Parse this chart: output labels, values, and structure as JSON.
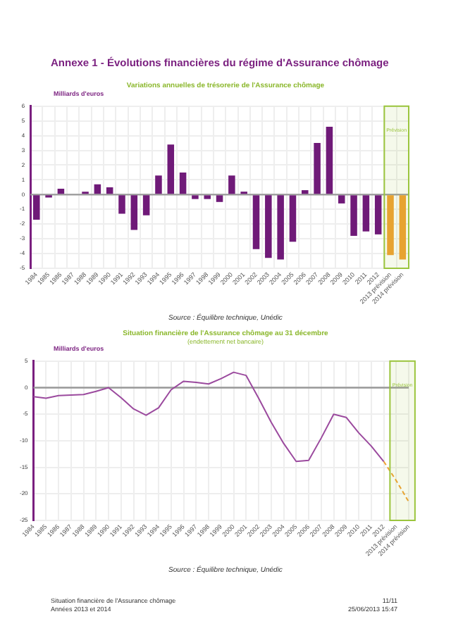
{
  "chart_data": [
    {
      "type": "bar",
      "title": "Variations annuelles de trésorerie de l'Assurance chômage",
      "ylabel": "Milliards d'euros",
      "categories": [
        "1984",
        "1985",
        "1986",
        "1987",
        "1988",
        "1989",
        "1990",
        "1991",
        "1992",
        "1993",
        "1994",
        "1995",
        "1996",
        "1997",
        "1998",
        "1999",
        "2000",
        "2001",
        "2002",
        "2003",
        "2004",
        "2005",
        "2006",
        "2007",
        "2008",
        "2009",
        "2010",
        "2011",
        "2012",
        "2013 prévision",
        "2014 prévision"
      ],
      "values": [
        -1.7,
        -0.2,
        0.4,
        0,
        0.2,
        0.7,
        0.5,
        -1.3,
        -2.4,
        -1.4,
        1.3,
        3.4,
        1.5,
        -0.3,
        -0.3,
        -0.5,
        1.3,
        0.2,
        -3.7,
        -4.3,
        -4.4,
        -3.2,
        0.3,
        3.5,
        4.6,
        -0.6,
        -2.8,
        -2.5,
        -2.7,
        -4.1,
        -4.4
      ],
      "colors": [
        "#6f1a78",
        "#6f1a78",
        "#6f1a78",
        "#6f1a78",
        "#6f1a78",
        "#6f1a78",
        "#6f1a78",
        "#6f1a78",
        "#6f1a78",
        "#6f1a78",
        "#6f1a78",
        "#6f1a78",
        "#6f1a78",
        "#6f1a78",
        "#6f1a78",
        "#6f1a78",
        "#6f1a78",
        "#6f1a78",
        "#6f1a78",
        "#6f1a78",
        "#6f1a78",
        "#6f1a78",
        "#6f1a78",
        "#6f1a78",
        "#6f1a78",
        "#6f1a78",
        "#6f1a78",
        "#6f1a78",
        "#6f1a78",
        "#f0a030",
        "#f0a030"
      ],
      "ylim": [
        -5,
        6
      ],
      "yticks": [
        -5,
        -4,
        -3,
        -2,
        -1,
        0,
        1,
        2,
        3,
        4,
        5,
        6
      ],
      "grid": true,
      "legend": false,
      "ref_lines": [
        {
          "axis": "y",
          "value": 0,
          "color": "#999999"
        }
      ],
      "bands": [
        {
          "axis": "x",
          "from": "2013 prévision",
          "to": "2014 prévision",
          "label": "Prévision",
          "color": "#9bc53d"
        }
      ],
      "annotations": [
        "Annexe 1 - Évolutions financières du régime d'Assurance chômage",
        "Source : Équilibre technique, Unédic"
      ]
    },
    {
      "type": "line",
      "title": "Situation financière de l'Assurance chômage au 31 décembre",
      "subtitle": "(endettement net bancaire)",
      "ylabel": "Milliards d'euros",
      "categories": [
        "1984",
        "1985",
        "1986",
        "1987",
        "1988",
        "1989",
        "1990",
        "1991",
        "1992",
        "1993",
        "1994",
        "1995",
        "1996",
        "1997",
        "1998",
        "1999",
        "2000",
        "2001",
        "2002",
        "2003",
        "2004",
        "2005",
        "2006",
        "2007",
        "2008",
        "2009",
        "2010",
        "2011",
        "2012",
        "2013 prévision",
        "2014 prévision"
      ],
      "series": [
        {
          "color": "#9b4a9e",
          "line_style": "solid",
          "values": [
            -1.7,
            -2.0,
            -1.5,
            -1.4,
            -1.3,
            -0.7,
            0,
            -1.9,
            -4.0,
            -5.2,
            -3.8,
            -0.4,
            1.2,
            1.0,
            0.7,
            1.7,
            2.9,
            2.3,
            -2,
            -6.5,
            -10.5,
            -13.9,
            -13.7,
            -9.5,
            -5.0,
            -5.6,
            -8.5,
            -11,
            -13.9,
            null,
            null
          ]
        },
        {
          "color": "#f0a030",
          "line_style": "dashed",
          "values": [
            null,
            null,
            null,
            null,
            null,
            null,
            null,
            null,
            null,
            null,
            null,
            null,
            null,
            null,
            null,
            null,
            null,
            null,
            null,
            null,
            null,
            null,
            null,
            null,
            null,
            null,
            null,
            null,
            -13.9,
            -17.5,
            -21.5
          ]
        }
      ],
      "ylim": [
        -25,
        5
      ],
      "yticks": [
        -25,
        -20,
        -15,
        -10,
        -5,
        0,
        5
      ],
      "grid": true,
      "legend": false,
      "marker": "none",
      "ref_lines": [
        {
          "axis": "y",
          "value": 0,
          "color": "#999999"
        }
      ],
      "bands": [
        {
          "axis": "x",
          "from": "2013 prévision",
          "to": "2014 prévision",
          "label": "Prévision",
          "color": "#9bc53d"
        }
      ],
      "annotations": [
        "Source : Équilibre technique, Unédic",
        "Situation financière de l'Assurance chômage",
        "Années 2013 et 2014",
        "11/11",
        "25/06/2013 15:47"
      ]
    }
  ]
}
